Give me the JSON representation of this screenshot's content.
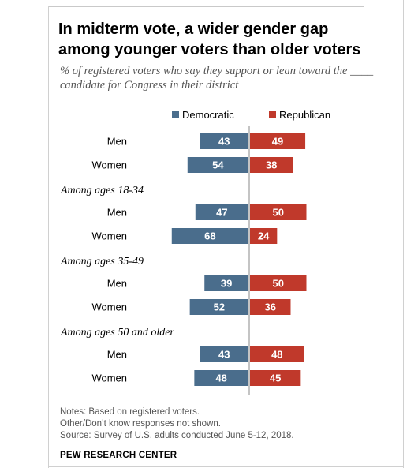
{
  "title": "In midterm vote, a wider gender gap among younger voters than older voters",
  "subtitle": "% of registered voters who say they support or lean toward the ____ candidate for Congress in their district",
  "colors": {
    "democratic": "#4a6d8c",
    "republican": "#c0392b",
    "divider": "#888888",
    "bar_text": "#ffffff"
  },
  "chart_data": {
    "type": "bar",
    "orientation": "diverging-horizontal",
    "series": [
      {
        "name": "Democratic",
        "color": "#4a6d8c"
      },
      {
        "name": "Republican",
        "color": "#c0392b"
      }
    ],
    "groups": [
      {
        "label": "",
        "rows": [
          {
            "label": "Men",
            "democratic": 43,
            "republican": 49
          },
          {
            "label": "Women",
            "democratic": 54,
            "republican": 38
          }
        ]
      },
      {
        "label": "Among ages 18-34",
        "rows": [
          {
            "label": "Men",
            "democratic": 47,
            "republican": 50
          },
          {
            "label": "Women",
            "democratic": 68,
            "republican": 24
          }
        ]
      },
      {
        "label": "Among ages 35-49",
        "rows": [
          {
            "label": "Men",
            "democratic": 39,
            "republican": 50
          },
          {
            "label": "Women",
            "democratic": 52,
            "republican": 36
          }
        ]
      },
      {
        "label": "Among ages 50 and older",
        "rows": [
          {
            "label": "Men",
            "democratic": 43,
            "republican": 48
          },
          {
            "label": "Women",
            "democratic": 48,
            "republican": 45
          }
        ]
      }
    ],
    "legend_position": "top",
    "grid": false
  },
  "notes": [
    "Notes: Based on registered voters.",
    "Other/Don’t know responses not shown.",
    "Source: Survey of U.S. adults conducted June 5-12, 2018."
  ],
  "brand": "PEW RESEARCH CENTER"
}
